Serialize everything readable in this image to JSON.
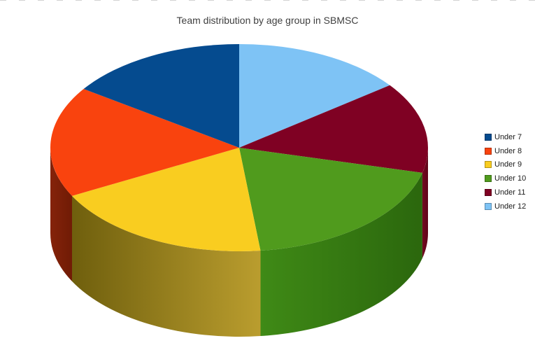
{
  "chart": {
    "title": "Team distribution by age group in SBMSC"
  },
  "chart_data": {
    "type": "pie",
    "style": "3d-pie",
    "title": "Team distribution by age group in SBMSC",
    "legend_position": "right",
    "start_angle_deg": 90,
    "plot_clockwise_from_top": [
      "Under 12",
      "Under 11",
      "Under 10",
      "Under 9",
      "Under 8",
      "Under 7"
    ],
    "categories": [
      "Under 7",
      "Under 8",
      "Under 9",
      "Under 10",
      "Under 11",
      "Under 12"
    ],
    "values_percent": [
      15.4,
      17.3,
      19.1,
      19.3,
      14.2,
      14.7
    ],
    "slices": [
      {
        "label": "Under 7",
        "percent": 15.4,
        "color": "#054b8f",
        "wall_gradient": [
          "#032e58",
          "#032e58"
        ]
      },
      {
        "label": "Under 8",
        "percent": 17.3,
        "color": "#f9430e",
        "wall_gradient": [
          "#85230a",
          "#701b05"
        ]
      },
      {
        "label": "Under 9",
        "percent": 19.1,
        "color": "#f9cd20",
        "wall_gradient": [
          "#6f5f0d",
          "#ba9d2e"
        ]
      },
      {
        "label": "Under 10",
        "percent": 19.3,
        "color": "#509b1d",
        "wall_gradient": [
          "#3f8a16",
          "#2b670d"
        ]
      },
      {
        "label": "Under 11",
        "percent": 14.2,
        "color": "#7f0123",
        "wall_gradient": [
          "#740a21",
          "#5f0518"
        ]
      },
      {
        "label": "Under 12",
        "percent": 14.7,
        "color": "#7ec3f5",
        "wall_gradient": [
          "#4f89b8",
          "#4f89b8"
        ]
      }
    ]
  }
}
